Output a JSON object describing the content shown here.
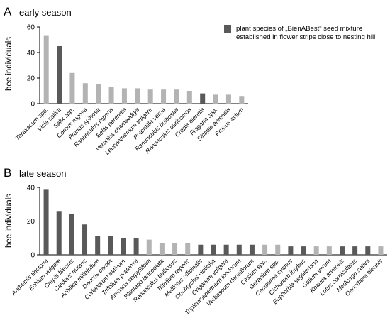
{
  "legend": {
    "line1": "plant species of „BienABest“ seed mixture",
    "line2": "established in flower strips close to nesting hill",
    "swatch_color": "#595959"
  },
  "colors": {
    "mixture": "#595959",
    "other": "#b3b3b3"
  },
  "chart_data": [
    {
      "type": "bar",
      "panel": "A",
      "title": "early season",
      "ylabel": "bee individuals",
      "ylim": [
        0,
        60
      ],
      "yticks": [
        0,
        20,
        40,
        60
      ],
      "categories": [
        "Taraxacum spp.",
        "Vicia sativa",
        "Salix spp.",
        "Cornus rugosa",
        "Prunus spinosa",
        "Ranunculus repens",
        "Bellis perennis",
        "Veronica chamaedrys",
        "Leucanthemum vulgare",
        "Potentilla verna",
        "Ranunculus bulbosus",
        "Ranunculus auricomus",
        "Crepis biennis",
        "Fragaria spp.",
        "Sinapis arvensis",
        "Prunus avium"
      ],
      "values": [
        53,
        45,
        24,
        16,
        15,
        13,
        12,
        12,
        11,
        11,
        11,
        10,
        8,
        7,
        7,
        6
      ],
      "in_mixture": [
        false,
        true,
        false,
        false,
        false,
        false,
        false,
        false,
        false,
        false,
        false,
        false,
        true,
        false,
        false,
        false
      ]
    },
    {
      "type": "bar",
      "panel": "B",
      "title": "late season",
      "ylabel": "bee individuals",
      "ylim": [
        0,
        40
      ],
      "yticks": [
        0,
        20,
        40
      ],
      "categories": [
        "Anthemis tinctoria",
        "Echium vulgare",
        "Crepis biennis",
        "Carduus nutans",
        "Achillea millefolium",
        "Daucus carota",
        "Coriandrum sativum",
        "Trifolium pratense",
        "Arenaria serpyllifolia",
        "Plantago lanceolata",
        "Ranunculus bulbosus",
        "Trifolium repens",
        "Melilotus officinalis",
        "Onobrychis viciifolia",
        "Origanum vulgare",
        "Tripleurospermum inodorum",
        "Verbascum densiflorum",
        "Cirsium spp.",
        "Geranium spp.",
        "Centaurea cyanus",
        "Cichorium intybus",
        "Euphorbia seguieriana",
        "Galium verum",
        "Knautia arvensis",
        "Lotus corniculatus",
        "Medicago sativa",
        "Oenothera biennis"
      ],
      "values": [
        39,
        26,
        24,
        18,
        11,
        11,
        10,
        10,
        9,
        7,
        7,
        7,
        6,
        6,
        6,
        6,
        6,
        6,
        6,
        5,
        5,
        5,
        5,
        5,
        5,
        5,
        5
      ],
      "in_mixture": [
        true,
        true,
        true,
        true,
        true,
        true,
        true,
        true,
        false,
        false,
        false,
        false,
        true,
        true,
        true,
        true,
        true,
        false,
        false,
        true,
        true,
        false,
        false,
        true,
        true,
        true,
        false
      ]
    }
  ]
}
